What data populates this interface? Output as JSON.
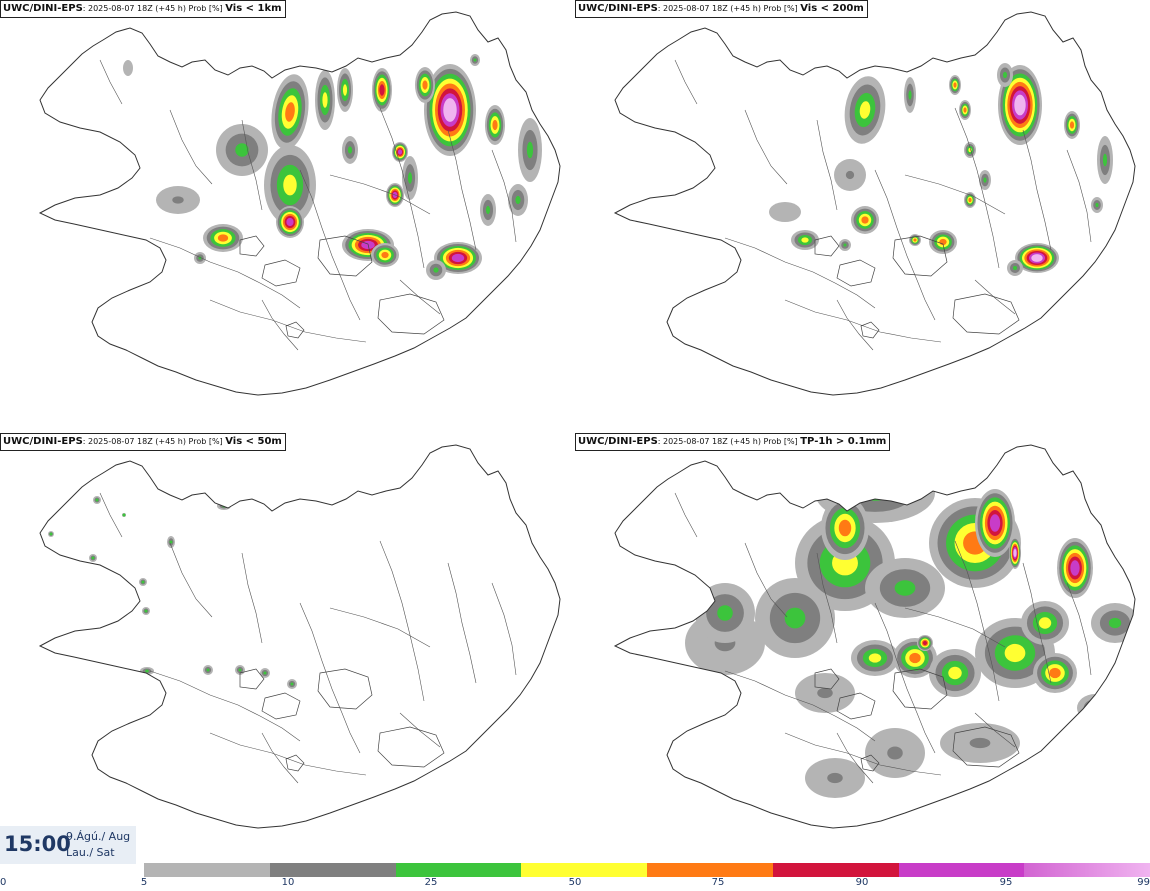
{
  "panels": [
    {
      "source": "UWC/DINI-EPS",
      "meta": ": 2025-08-07 18Z (+45 h) Prob [%] ",
      "param": "Vis < 1km"
    },
    {
      "source": "UWC/DINI-EPS",
      "meta": ": 2025-08-07 18Z (+45 h) Prob [%] ",
      "param": "Vis < 200m"
    },
    {
      "source": "UWC/DINI-EPS",
      "meta": ": 2025-08-07 18Z (+45 h) Prob [%] ",
      "param": "Vis < 50m"
    },
    {
      "source": "UWC/DINI-EPS",
      "meta": ": 2025-08-07 18Z (+45 h) Prob [%] ",
      "param": "TP-1h > 0.1mm"
    }
  ],
  "timestamp": {
    "time": "15:00",
    "date": "9.Ágú./ Aug",
    "day": "Lau./ Sat"
  },
  "legend": {
    "ticks": [
      "0",
      "5",
      "10",
      "25",
      "50",
      "75",
      "90",
      "95",
      "99"
    ],
    "colors": [
      "#b4b4b4",
      "#7f7f7f",
      "#3cc43c",
      "#ffff32",
      "#ff7a14",
      "#d2143c",
      "#c83cc8",
      "#f0b4f0"
    ]
  }
}
